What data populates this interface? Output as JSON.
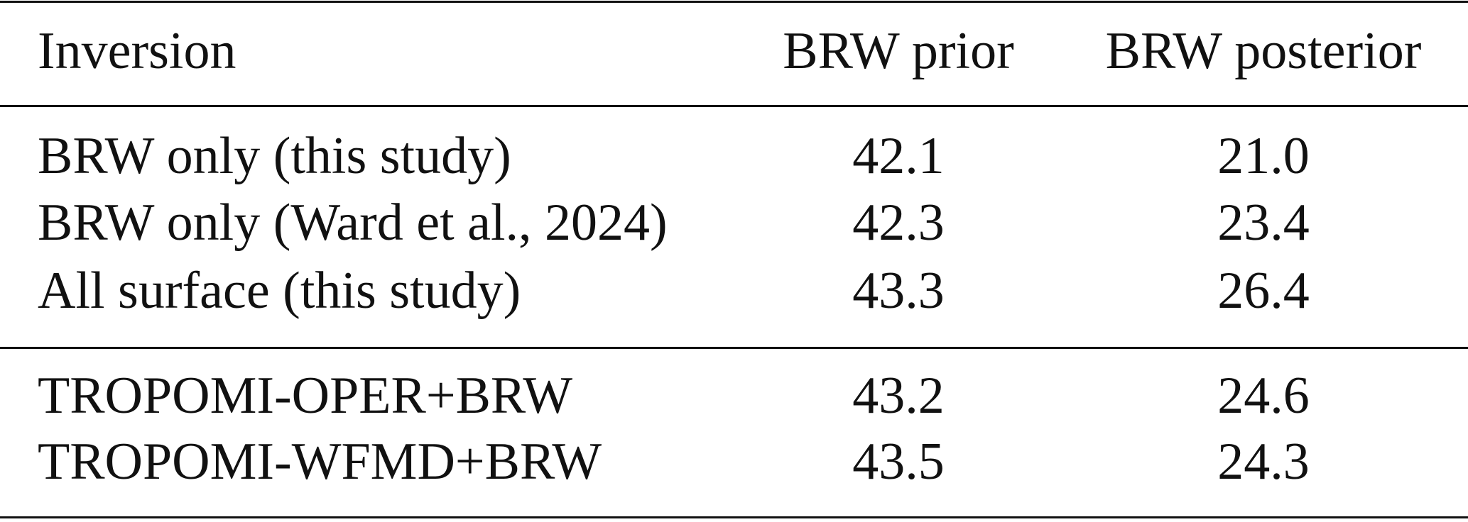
{
  "table": {
    "header": [
      "Inversion",
      "BRW prior",
      "BRW posterior"
    ],
    "groups": [
      [
        [
          "BRW only (this study)",
          "42.1",
          "21.0"
        ],
        [
          "BRW only (Ward et al., 2024)",
          "42.3",
          "23.4"
        ],
        [
          "All surface (this study)",
          "43.3",
          "26.4"
        ]
      ],
      [
        [
          "TROPOMI-OPER+BRW",
          "43.2",
          "24.6"
        ],
        [
          "TROPOMI-WFMD+BRW",
          "43.5",
          "24.3"
        ]
      ]
    ]
  }
}
